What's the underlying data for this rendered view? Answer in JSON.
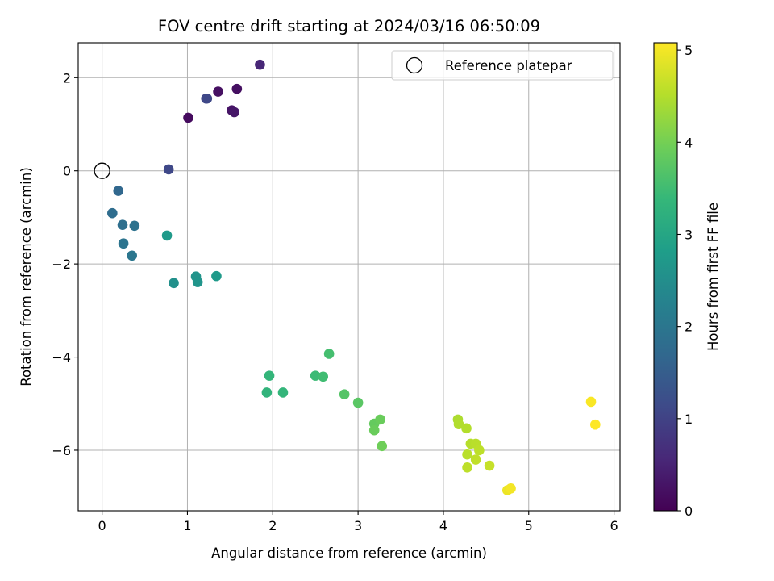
{
  "chart_data": {
    "type": "scatter",
    "title": "FOV centre drift starting at 2024/03/16 06:50:09",
    "xlabel": "Angular distance from reference (arcmin)",
    "ylabel": "Rotation from reference (arcmin)",
    "xlim": [
      -0.28,
      6.07
    ],
    "ylim": [
      -7.3,
      2.75
    ],
    "xticks": [
      0,
      1,
      2,
      3,
      4,
      5,
      6
    ],
    "yticks": [
      -6,
      -4,
      -2,
      0,
      2
    ],
    "grid": true,
    "legend": {
      "position": "top-right",
      "entries": [
        {
          "label": "Reference platepar",
          "marker": "open-circle"
        }
      ]
    },
    "reference_point": {
      "x": 0,
      "y": 0
    },
    "colorbar": {
      "label": "Hours from first FF file",
      "colormap": "viridis",
      "range": [
        0,
        5.08
      ],
      "ticks": [
        0,
        1,
        2,
        3,
        4,
        5
      ],
      "colors": [
        "#440154",
        "#482878",
        "#3e4a89",
        "#31688e",
        "#26828e",
        "#1f9e89",
        "#35b779",
        "#6ece58",
        "#b5de2b",
        "#fde725"
      ]
    },
    "points": [
      {
        "x": 1.01,
        "y": 1.14,
        "c": 0.15
      },
      {
        "x": 1.36,
        "y": 1.7,
        "c": 0.22
      },
      {
        "x": 1.58,
        "y": 1.76,
        "c": 0.2
      },
      {
        "x": 1.52,
        "y": 1.3,
        "c": 0.28
      },
      {
        "x": 1.55,
        "y": 1.26,
        "c": 0.32
      },
      {
        "x": 1.85,
        "y": 2.28,
        "c": 0.55
      },
      {
        "x": 1.22,
        "y": 1.55,
        "c": 1.05
      },
      {
        "x": 1.23,
        "y": 1.55,
        "c": 1.1
      },
      {
        "x": 0.78,
        "y": 0.03,
        "c": 1.1
      },
      {
        "x": 0.19,
        "y": -0.43,
        "c": 1.7
      },
      {
        "x": 0.12,
        "y": -0.91,
        "c": 1.8
      },
      {
        "x": 0.24,
        "y": -1.16,
        "c": 1.85
      },
      {
        "x": 0.38,
        "y": -1.18,
        "c": 1.9
      },
      {
        "x": 0.25,
        "y": -1.56,
        "c": 1.95
      },
      {
        "x": 0.35,
        "y": -1.82,
        "c": 2.0
      },
      {
        "x": 0.76,
        "y": -1.39,
        "c": 2.75
      },
      {
        "x": 0.84,
        "y": -2.41,
        "c": 2.55
      },
      {
        "x": 1.1,
        "y": -2.27,
        "c": 2.62
      },
      {
        "x": 1.12,
        "y": -2.39,
        "c": 2.65
      },
      {
        "x": 1.34,
        "y": -2.26,
        "c": 2.75
      },
      {
        "x": 1.96,
        "y": -4.4,
        "c": 3.35
      },
      {
        "x": 1.93,
        "y": -4.76,
        "c": 3.3
      },
      {
        "x": 2.12,
        "y": -4.76,
        "c": 3.35
      },
      {
        "x": 2.5,
        "y": -4.4,
        "c": 3.45
      },
      {
        "x": 2.59,
        "y": -4.42,
        "c": 3.5
      },
      {
        "x": 2.66,
        "y": -3.93,
        "c": 3.55
      },
      {
        "x": 2.84,
        "y": -4.8,
        "c": 3.7
      },
      {
        "x": 3.0,
        "y": -4.98,
        "c": 3.75
      },
      {
        "x": 3.19,
        "y": -5.43,
        "c": 3.85
      },
      {
        "x": 3.19,
        "y": -5.57,
        "c": 3.9
      },
      {
        "x": 3.26,
        "y": -5.34,
        "c": 3.9
      },
      {
        "x": 3.28,
        "y": -5.91,
        "c": 3.95
      },
      {
        "x": 4.17,
        "y": -5.34,
        "c": 4.45
      },
      {
        "x": 4.18,
        "y": -5.44,
        "c": 4.48
      },
      {
        "x": 4.27,
        "y": -5.53,
        "c": 4.5
      },
      {
        "x": 4.32,
        "y": -5.86,
        "c": 4.52
      },
      {
        "x": 4.38,
        "y": -5.86,
        "c": 4.55
      },
      {
        "x": 4.42,
        "y": -6.0,
        "c": 4.58
      },
      {
        "x": 4.28,
        "y": -6.09,
        "c": 4.55
      },
      {
        "x": 4.38,
        "y": -6.2,
        "c": 4.6
      },
      {
        "x": 4.28,
        "y": -6.37,
        "c": 4.58
      },
      {
        "x": 4.54,
        "y": -6.33,
        "c": 4.65
      },
      {
        "x": 4.75,
        "y": -6.86,
        "c": 4.95
      },
      {
        "x": 4.79,
        "y": -6.82,
        "c": 5.0
      },
      {
        "x": 5.73,
        "y": -4.96,
        "c": 5.05
      },
      {
        "x": 5.78,
        "y": -5.45,
        "c": 5.08
      }
    ]
  }
}
